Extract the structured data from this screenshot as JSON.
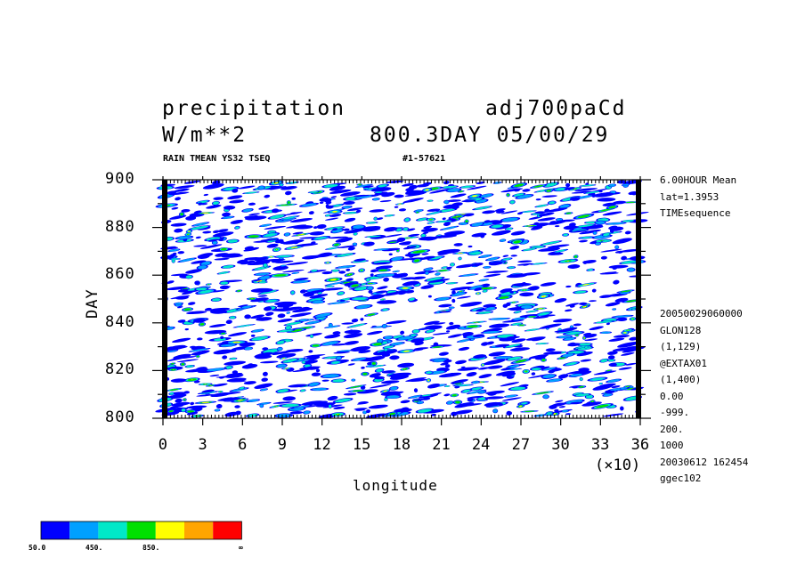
{
  "header": {
    "title_left": "precipitation",
    "title_right": "adj700paCd",
    "units": "W/m**2",
    "time_info": "800.3DAY 05/00/29",
    "subtitle": "RAIN TMEAN YS32 TSEQ",
    "id_label": "#1-57621"
  },
  "side_info": {
    "top": [
      "6.00HOUR Mean",
      "lat=1.3953",
      "TIMEsequence"
    ],
    "bottom": [
      "20050029060000",
      "GLON128",
      "(1,129)",
      "@EXTAX01",
      "(1,400)",
      "0.00",
      "-999.",
      "200.",
      "1000",
      "20030612 162454",
      "ggec102"
    ]
  },
  "axes": {
    "xlabel": "longitude",
    "ylabel": "DAY",
    "x_multiplier": "(×10)",
    "x_ticks": [
      "0",
      "3",
      "6",
      "9",
      "12",
      "15",
      "18",
      "21",
      "24",
      "27",
      "30",
      "33",
      "36"
    ],
    "y_ticks": [
      "900",
      "880",
      "860",
      "840",
      "820",
      "800"
    ]
  },
  "colorbar": {
    "colors": [
      "#0000ff",
      "#00a0ff",
      "#00e8c8",
      "#00e000",
      "#ffff00",
      "#ffa500",
      "#ff0000"
    ],
    "labels": [
      "50.0",
      "450.",
      "850.",
      "∞"
    ]
  },
  "chart_data": {
    "type": "heatmap",
    "title": "precipitation",
    "xlabel": "longitude",
    "ylabel": "DAY",
    "xlim": [
      0,
      360
    ],
    "ylim": [
      800,
      900
    ],
    "x_ticks": [
      0,
      30,
      60,
      90,
      120,
      150,
      180,
      210,
      240,
      270,
      300,
      330,
      360
    ],
    "y_ticks": [
      800,
      820,
      840,
      860,
      880,
      900
    ],
    "color_levels": [
      50,
      250,
      450,
      650,
      850,
      1050
    ]
  }
}
